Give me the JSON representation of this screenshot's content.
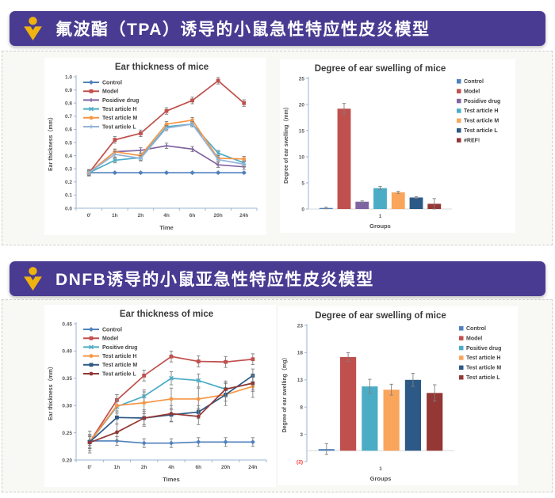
{
  "theme": {
    "banner_bg": "#4a3b92",
    "logo_color": "#efb310",
    "card_bg": "#f8f8f5",
    "card_border": "#cfcfc9",
    "axis_color": "#9ab6d4",
    "baseline_color": "#d9d9d9",
    "error_bar_color": "#7f7f7f",
    "title_color": "#3b3b3b",
    "tick_color": "#595959",
    "label_color": "#4d4d4d",
    "negative_tick_color": "#ff2b2b"
  },
  "sections": [
    {
      "banner": {
        "title": "氟波酯（TPA）诱导的小鼠急性特应性皮炎模型"
      }
    },
    {
      "banner": {
        "title": "DNFB诱导的小鼠亚急性特应性皮炎模型"
      }
    }
  ],
  "chart_data": [
    {
      "type": "line",
      "title": "Ear thickness of mice",
      "xlabel": "Time",
      "ylabel": "Ear thickness（mm）",
      "categories": [
        "0'",
        "1h",
        "2h",
        "4h",
        "6h",
        "20h",
        "24h"
      ],
      "ylim": [
        0.0,
        1.0
      ],
      "yticks": [
        {
          "v": 1.0,
          "label": "1.0"
        },
        {
          "v": 0.9,
          "label": "0.9"
        },
        {
          "v": 0.8,
          "label": "0.8"
        },
        {
          "v": 0.7,
          "label": "0.7"
        },
        {
          "v": 0.6,
          "label": "0.6"
        },
        {
          "v": 0.5,
          "label": "0.5"
        },
        {
          "v": 0.4,
          "label": "0.4"
        },
        {
          "v": 0.3,
          "label": "0.3"
        },
        {
          "v": 0.2,
          "label": "0.2"
        },
        {
          "v": 0.1,
          "label": "0.1"
        },
        {
          "v": 0.0,
          "label": "0.0"
        }
      ],
      "legend_position": "inside-top-left",
      "grid": false,
      "series": [
        {
          "name": "Control",
          "color": "#4f81bd",
          "marker": "diamond",
          "err": 0.006,
          "values": [
            0.27,
            0.27,
            0.27,
            0.27,
            0.27,
            0.27,
            0.27
          ]
        },
        {
          "name": "Model",
          "color": "#c0504d",
          "marker": "square",
          "err": 0.025,
          "values": [
            0.27,
            0.52,
            0.57,
            0.74,
            0.82,
            0.97,
            0.8
          ]
        },
        {
          "name": "Posidive drug",
          "color": "#8064a2",
          "marker": "plus",
          "err": 0.02,
          "values": [
            0.27,
            0.43,
            0.44,
            0.475,
            0.45,
            0.33,
            0.315
          ]
        },
        {
          "name": "Test article H",
          "color": "#4bacc6",
          "marker": "x",
          "err": 0.02,
          "values": [
            0.27,
            0.365,
            0.385,
            0.62,
            0.64,
            0.42,
            0.345
          ]
        },
        {
          "name": "Test article M",
          "color": "#f79646",
          "marker": "circle",
          "err": 0.02,
          "values": [
            0.27,
            0.43,
            0.4,
            0.64,
            0.67,
            0.38,
            0.375
          ]
        },
        {
          "name": "Test article L",
          "color": "#95b3d7",
          "marker": "plus",
          "err": 0.02,
          "values": [
            0.27,
            0.41,
            0.38,
            0.61,
            0.64,
            0.37,
            0.335
          ]
        }
      ]
    },
    {
      "type": "bar",
      "title": "Degree of ear swelling of mice",
      "xlabel": "Groups",
      "ylabel": "Degree of ear swelling（mm）",
      "categories": [
        "1"
      ],
      "ylim": [
        0,
        25
      ],
      "yticks": [
        {
          "v": 25,
          "label": "25"
        },
        {
          "v": 20,
          "label": "20"
        },
        {
          "v": 15,
          "label": "15"
        },
        {
          "v": 10,
          "label": "10"
        },
        {
          "v": 5,
          "label": "5"
        },
        {
          "v": 0,
          "label": "0"
        }
      ],
      "legend_position": "right",
      "grid": false,
      "series": [
        {
          "name": "Control",
          "color": "#4f81bd",
          "value": 0.2,
          "err": 0.15
        },
        {
          "name": "Model",
          "color": "#c0504d",
          "value": 19.2,
          "err": 1.0
        },
        {
          "name": "Posidive drug",
          "color": "#8064a2",
          "value": 1.4,
          "err": 0.15
        },
        {
          "name": "Test article H",
          "color": "#4bacc6",
          "value": 4.0,
          "err": 0.3
        },
        {
          "name": "Test article M",
          "color": "#f9a55b",
          "value": 3.2,
          "err": 0.2
        },
        {
          "name": "Test article L",
          "color": "#2c5985",
          "value": 2.2,
          "err": 0.15
        },
        {
          "name": "#REF!",
          "color": "#943735",
          "value": 1.0,
          "err": 1.0
        }
      ]
    },
    {
      "type": "line",
      "title": "Ear thickness of mice",
      "xlabel": "Times",
      "ylabel": "Ear thickness（mm）",
      "categories": [
        "0'",
        "1h",
        "2h",
        "4h",
        "6h",
        "20h",
        "24h"
      ],
      "ylim": [
        0.2,
        0.45
      ],
      "yticks": [
        {
          "v": 0.45,
          "label": "0.45"
        },
        {
          "v": 0.4,
          "label": "0.40"
        },
        {
          "v": 0.35,
          "label": "0.35"
        },
        {
          "v": 0.3,
          "label": "0.30"
        },
        {
          "v": 0.25,
          "label": "0.25"
        },
        {
          "v": 0.2,
          "label": "0.20"
        }
      ],
      "legend_position": "inside-top-left",
      "grid": false,
      "series": [
        {
          "name": "Control",
          "color": "#4f81bd",
          "marker": "diamond",
          "err": 0.008,
          "values": [
            0.235,
            0.235,
            0.231,
            0.231,
            0.233,
            0.233,
            0.233
          ]
        },
        {
          "name": "Model",
          "color": "#c0504d",
          "marker": "square",
          "err": 0.01,
          "values": [
            0.233,
            0.31,
            0.355,
            0.39,
            0.381,
            0.38,
            0.385
          ]
        },
        {
          "name": "Positive drug",
          "color": "#4bacc6",
          "marker": "x",
          "err": 0.012,
          "values": [
            0.233,
            0.298,
            0.317,
            0.35,
            0.346,
            0.33,
            0.341
          ]
        },
        {
          "name": "Test article H",
          "color": "#f79646",
          "marker": "circle",
          "err": 0.02,
          "values": [
            0.233,
            0.3,
            0.305,
            0.312,
            0.312,
            0.32,
            0.335
          ]
        },
        {
          "name": "Test article M",
          "color": "#2c5985",
          "marker": "square",
          "err": 0.012,
          "values": [
            0.233,
            0.278,
            0.277,
            0.283,
            0.288,
            0.32,
            0.355
          ]
        },
        {
          "name": "Test article L",
          "color": "#943735",
          "marker": "circle",
          "err": 0.015,
          "values": [
            0.232,
            0.251,
            0.277,
            0.285,
            0.28,
            0.33,
            0.341
          ]
        }
      ]
    },
    {
      "type": "bar",
      "title": "Degree of ear swelling of mice",
      "xlabel": "Groups",
      "ylabel": "Degree of ear swelling（mg）",
      "categories": [
        "1"
      ],
      "ylim": [
        -2,
        23
      ],
      "yticks": [
        {
          "v": 23,
          "label": "23"
        },
        {
          "v": 18,
          "label": "18"
        },
        {
          "v": 13,
          "label": "13"
        },
        {
          "v": 8,
          "label": "8"
        },
        {
          "v": 3,
          "label": "3"
        },
        {
          "v": -2,
          "label": "(2)",
          "color": "#ff2b2b"
        }
      ],
      "legend_position": "right",
      "grid": false,
      "series": [
        {
          "name": "Control",
          "color": "#4f81bd",
          "value": 0.3,
          "err": 1.0
        },
        {
          "name": "Model",
          "color": "#c0504d",
          "value": 17.2,
          "err": 0.8
        },
        {
          "name": "Positive drug",
          "color": "#4bacc6",
          "value": 11.8,
          "err": 1.3
        },
        {
          "name": "Test article H",
          "color": "#f9a55b",
          "value": 11.2,
          "err": 1.0
        },
        {
          "name": "Test article M",
          "color": "#2c5985",
          "value": 13.0,
          "err": 1.2
        },
        {
          "name": "Test article L",
          "color": "#943735",
          "value": 10.6,
          "err": 1.5
        }
      ]
    }
  ]
}
